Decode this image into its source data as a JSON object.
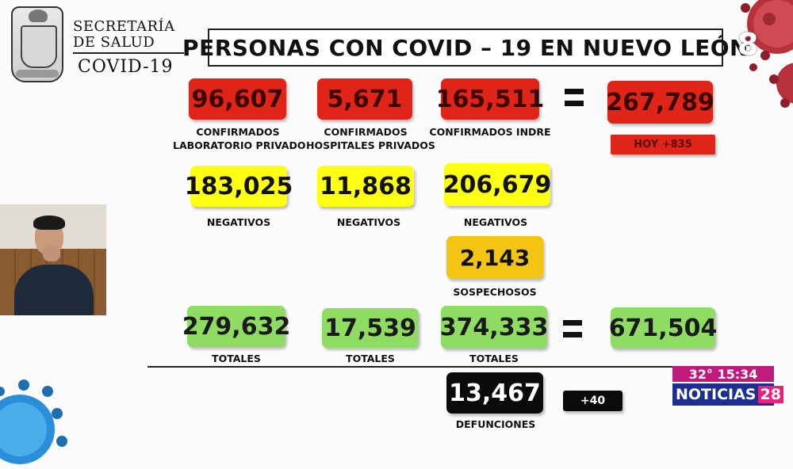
{
  "header": {
    "org_line1": "SECRETARÍA",
    "org_line2": "DE SALUD",
    "org_sub": "COVID-19",
    "title": "PERSONAS CON COVID – 19 EN NUEVO LEÓN"
  },
  "confirmed": {
    "lab_privado": {
      "value": "96,607",
      "label_1": "CONFIRMADOS",
      "label_2": "LABORATORIO PRIVADO"
    },
    "hosp_privados": {
      "value": "5,671",
      "label_1": "CONFIRMADOS",
      "label_2": "HOSPITALES PRIVADOS"
    },
    "indre": {
      "value": "165,511",
      "label_1": "CONFIRMADOS INDRE"
    },
    "total": {
      "value": "267,789"
    },
    "today": "HOY +835"
  },
  "negatives": {
    "col1": {
      "value": "183,025",
      "label": "NEGATIVOS"
    },
    "col2": {
      "value": "11,868",
      "label": "NEGATIVOS"
    },
    "col3": {
      "value": "206,679",
      "label": "NEGATIVOS"
    }
  },
  "suspects": {
    "value": "2,143",
    "label": "SOSPECHOSOS"
  },
  "totals": {
    "col1": {
      "value": "279,632",
      "label": "TOTALES"
    },
    "col2": {
      "value": "17,539",
      "label": "TOTALES"
    },
    "col3": {
      "value": "374,333",
      "label": "TOTALES"
    },
    "grand": {
      "value": "671,504"
    }
  },
  "deaths": {
    "value": "13,467",
    "label": "DEFUNCIONES",
    "today": "+40"
  },
  "tv": {
    "temperature": "32°",
    "time": "15:34",
    "channel_name": "NOTICIAS",
    "channel_number": "28",
    "corner_digit": "8"
  },
  "colors": {
    "confirmed": "#e02418",
    "negatives": "#ffff14",
    "suspects": "#f3c412",
    "totals": "#8fdc62",
    "deaths": "#0b0b0b"
  }
}
